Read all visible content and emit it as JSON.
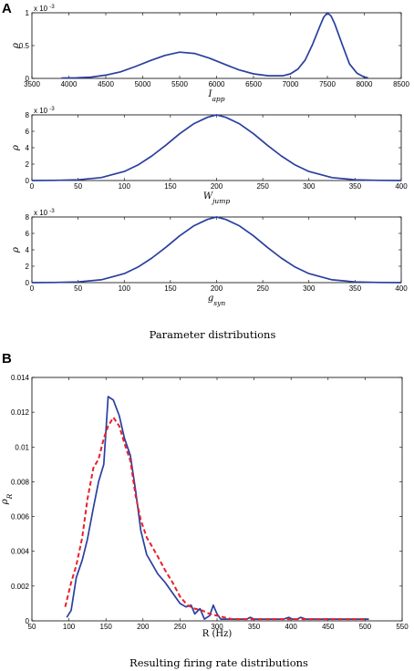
{
  "panel_letters": {
    "a": "A",
    "b": "B"
  },
  "captions": {
    "a": "Parameter distributions",
    "b": "Resulting firing rate distributions"
  },
  "colors": {
    "blue": "#2a3f9e",
    "red": "#e8202a"
  },
  "chart_data": [
    {
      "id": "iapp",
      "type": "line",
      "xlabel": "I",
      "xlabel_sub": "app",
      "ylabel": "ρ",
      "exponent_label": "x 10",
      "exponent_power": "-3",
      "xlim": [
        3500,
        8500
      ],
      "ylim": [
        0,
        1
      ],
      "xticks": [
        3500,
        4000,
        4500,
        5000,
        5500,
        6000,
        6500,
        7000,
        7500,
        8000,
        8500
      ],
      "yticks": [
        0,
        0.5,
        1
      ],
      "ytick_labels": [
        "0",
        "0.5",
        "1"
      ],
      "series": [
        {
          "x": [
            3900,
            4100,
            4300,
            4500,
            4700,
            4900,
            5100,
            5300,
            5500,
            5700,
            5900,
            6100,
            6300,
            6500,
            6700,
            6900,
            7000,
            7100,
            7200,
            7300,
            7400,
            7450,
            7500,
            7550,
            7600,
            7700,
            7800,
            7900,
            8000,
            8050
          ],
          "y": [
            0.005,
            0.01,
            0.02,
            0.05,
            0.1,
            0.18,
            0.27,
            0.35,
            0.4,
            0.38,
            0.31,
            0.22,
            0.13,
            0.07,
            0.04,
            0.04,
            0.07,
            0.14,
            0.28,
            0.52,
            0.8,
            0.93,
            1.0,
            0.95,
            0.83,
            0.52,
            0.22,
            0.08,
            0.02,
            0.01
          ]
        }
      ]
    },
    {
      "id": "wjump",
      "type": "line",
      "xlabel": "W",
      "xlabel_sub": "jump",
      "ylabel": "ρ",
      "exponent_label": "x 10",
      "exponent_power": "-3",
      "xlim": [
        0,
        400
      ],
      "ylim": [
        0,
        8
      ],
      "xticks": [
        0,
        50,
        100,
        150,
        200,
        250,
        300,
        350,
        400
      ],
      "yticks": [
        0,
        2,
        4,
        6,
        8
      ],
      "ytick_labels": [
        "0",
        "2",
        "4",
        "6",
        "8"
      ],
      "series": [
        {
          "x": [
            0,
            25,
            50,
            75,
            100,
            115,
            130,
            145,
            160,
            175,
            190,
            200,
            210,
            225,
            240,
            255,
            270,
            285,
            300,
            325,
            350,
            375,
            400
          ],
          "y": [
            0.0,
            0.02,
            0.09,
            0.35,
            1.1,
            1.9,
            3.0,
            4.3,
            5.7,
            6.9,
            7.7,
            8.0,
            7.7,
            6.9,
            5.7,
            4.3,
            3.0,
            1.9,
            1.1,
            0.35,
            0.09,
            0.02,
            0.0
          ]
        }
      ]
    },
    {
      "id": "gsyn",
      "type": "line",
      "xlabel": "g",
      "xlabel_sub": "syn",
      "ylabel": "ρ",
      "exponent_label": "x 10",
      "exponent_power": "-3",
      "xlim": [
        0,
        400
      ],
      "ylim": [
        0,
        8
      ],
      "xticks": [
        0,
        50,
        100,
        150,
        200,
        250,
        300,
        350,
        400
      ],
      "yticks": [
        0,
        2,
        4,
        6,
        8
      ],
      "ytick_labels": [
        "0",
        "2",
        "4",
        "6",
        "8"
      ],
      "series": [
        {
          "x": [
            0,
            25,
            50,
            75,
            100,
            115,
            130,
            145,
            160,
            175,
            190,
            200,
            210,
            225,
            240,
            255,
            270,
            285,
            300,
            325,
            350,
            375,
            400
          ],
          "y": [
            0.0,
            0.02,
            0.09,
            0.35,
            1.1,
            1.9,
            3.0,
            4.3,
            5.7,
            6.9,
            7.7,
            8.0,
            7.7,
            6.9,
            5.7,
            4.3,
            3.0,
            1.9,
            1.1,
            0.35,
            0.09,
            0.02,
            0.0
          ]
        }
      ]
    },
    {
      "id": "rate",
      "type": "line",
      "xlabel": "R (Hz)",
      "ylabel": "ρ",
      "ylabel_sub": "R",
      "xlim": [
        50,
        550
      ],
      "ylim": [
        0,
        0.014
      ],
      "xticks": [
        50,
        100,
        150,
        200,
        250,
        300,
        350,
        400,
        450,
        500,
        550
      ],
      "yticks": [
        0,
        0.002,
        0.004,
        0.006,
        0.008,
        0.01,
        0.012,
        0.014
      ],
      "ytick_labels": [
        "0",
        "0.002",
        "0.004",
        "0.006",
        "0.008",
        "0.01",
        "0.012",
        "0.014"
      ],
      "series": [
        {
          "style": "solid",
          "x": [
            97,
            103,
            110,
            118,
            125,
            133,
            140,
            147,
            153,
            160,
            168,
            175,
            183,
            190,
            197,
            205,
            212,
            220,
            230,
            240,
            250,
            258,
            265,
            270,
            277,
            283,
            290,
            295,
            300,
            305,
            310,
            320,
            330,
            340,
            345,
            350,
            360,
            370,
            380,
            390,
            397,
            402,
            408,
            413,
            420,
            430,
            450,
            480,
            500,
            505
          ],
          "y": [
            0.0002,
            0.0006,
            0.0025,
            0.0035,
            0.0047,
            0.0065,
            0.008,
            0.009,
            0.0129,
            0.0127,
            0.0118,
            0.0105,
            0.0095,
            0.0075,
            0.0052,
            0.0038,
            0.0033,
            0.0027,
            0.0022,
            0.0016,
            0.001,
            0.0008,
            0.0009,
            0.0004,
            0.0007,
            0.0001,
            0.0003,
            0.0009,
            0.0004,
            0.0001,
            0.0001,
            0.0001,
            0.0001,
            0.0001,
            0.0002,
            0.0001,
            0.0001,
            0.0001,
            0.0001,
            0.0001,
            0.0002,
            0.0001,
            0.0001,
            0.0002,
            0.0001,
            0.0001,
            0.0001,
            0.0001,
            0.0001,
            0.0001
          ]
        },
        {
          "style": "dashed",
          "x": [
            95,
            103,
            110,
            118,
            125,
            133,
            140,
            147,
            153,
            160,
            168,
            175,
            183,
            190,
            197,
            205,
            212,
            220,
            230,
            240,
            250,
            260,
            270,
            280,
            290,
            300,
            310,
            320,
            330,
            340,
            350,
            360,
            400,
            450,
            500
          ],
          "y": [
            0.0008,
            0.0022,
            0.0032,
            0.0048,
            0.007,
            0.0088,
            0.0093,
            0.0105,
            0.0112,
            0.0117,
            0.0112,
            0.0102,
            0.0092,
            0.0072,
            0.0058,
            0.0048,
            0.0043,
            0.0037,
            0.0029,
            0.0022,
            0.0014,
            0.0009,
            0.0007,
            0.0006,
            0.0004,
            0.0003,
            0.0002,
            0.0001,
            0.0001,
            0.0001,
            0.0001,
            0.0001,
            0.0001,
            0.0001,
            0.0001
          ]
        }
      ]
    }
  ]
}
